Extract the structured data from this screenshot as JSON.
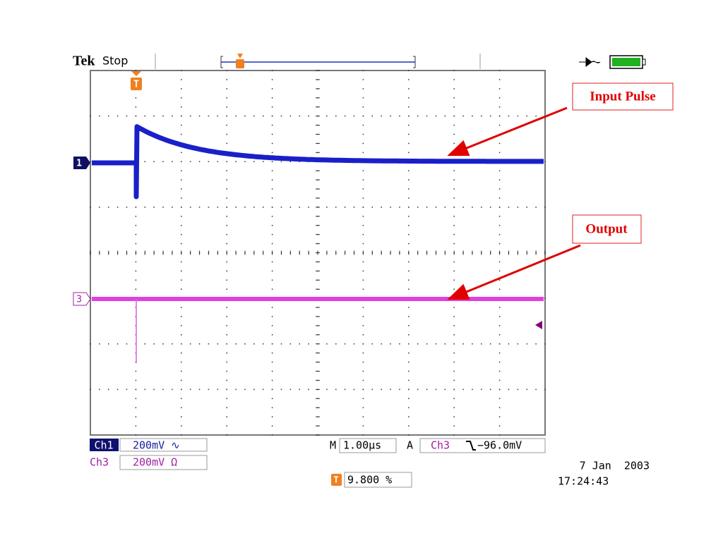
{
  "header": {
    "brand": "Tek",
    "status": "Stop"
  },
  "screen": {
    "trigger_marker": "T",
    "ch1_marker": "1",
    "ch3_marker": "3"
  },
  "annotations": [
    "Input Pulse",
    "Output"
  ],
  "footer": {
    "ch1": {
      "label": "Ch1",
      "scale": "200mV ∿"
    },
    "ch3": {
      "label": "Ch3",
      "scale": "200mV Ω"
    },
    "timebase": {
      "label": "M",
      "value": "1.00µs"
    },
    "trigger": {
      "label": "A",
      "source": "Ch3",
      "level": "−96.0mV"
    },
    "position": {
      "marker": "T",
      "value": "9.800 %"
    },
    "date": "7 Jan  2003",
    "time": "17:24:43"
  }
}
